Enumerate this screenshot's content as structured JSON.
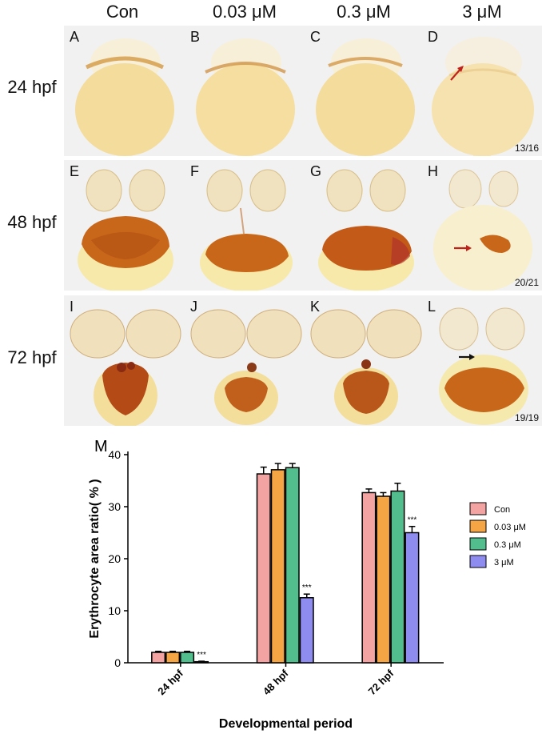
{
  "figure": {
    "columns": [
      "Con",
      "0.03 μM",
      "0.3 μM",
      "3 μM"
    ],
    "rows": [
      "24 hpf",
      "48 hpf",
      "72 hpf"
    ],
    "panel_letters": [
      "A",
      "B",
      "C",
      "D",
      "E",
      "F",
      "G",
      "H",
      "I",
      "J",
      "K",
      "L"
    ],
    "counts": {
      "D": "13/16",
      "H": "20/21",
      "L": "19/19"
    },
    "panel_m_label": "M"
  },
  "chart_data": {
    "type": "bar",
    "categories": [
      "24 hpf",
      "48 hpf",
      "72 hpf"
    ],
    "xlabel": "Developmental period",
    "ylabel": "Erythrocyte area ratio( % )",
    "ylim": [
      0,
      40
    ],
    "yticks": [
      0,
      10,
      20,
      30,
      40
    ],
    "series": [
      {
        "name": "Con",
        "color": "#f4a3a3",
        "values": [
          2.0,
          36.3,
          32.7
        ],
        "errors": [
          0.2,
          1.3,
          0.7
        ]
      },
      {
        "name": "0.03 μM",
        "color": "#f5a544",
        "values": [
          2.0,
          37.1,
          32.0
        ],
        "errors": [
          0.2,
          1.2,
          0.7
        ]
      },
      {
        "name": "0.3 μM",
        "color": "#52be8e",
        "values": [
          2.0,
          37.5,
          33.0
        ],
        "errors": [
          0.2,
          0.8,
          1.5
        ]
      },
      {
        "name": "3 μM",
        "color": "#8f8cf0",
        "values": [
          0.2,
          12.5,
          25.0
        ],
        "errors": [
          0.1,
          0.7,
          1.2
        ]
      }
    ],
    "significance": [
      "***",
      "***",
      "***"
    ],
    "legend_position": "right"
  }
}
